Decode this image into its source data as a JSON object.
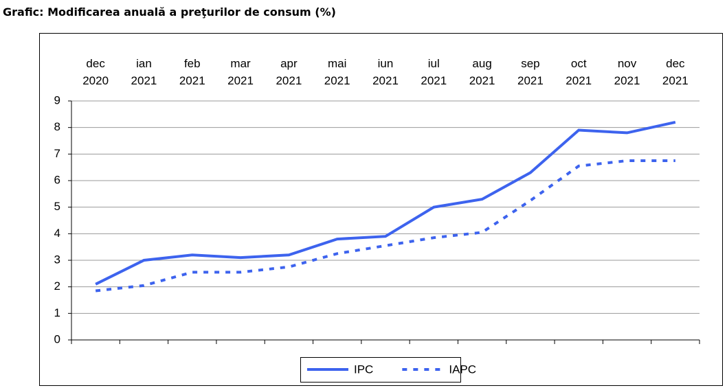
{
  "chart_data": {
    "type": "line",
    "title": "Grafic: Modificarea anuală a preţurilor de consum (%)",
    "categories": [
      "dec 2020",
      "ian 2021",
      "feb 2021",
      "mar 2021",
      "apr 2021",
      "mai 2021",
      "iun 2021",
      "iul 2021",
      "aug 2021",
      "sep 2021",
      "oct 2021",
      "nov 2021",
      "dec 2021"
    ],
    "series": [
      {
        "name": "IPC",
        "color": "#3d63ee",
        "line_style": "solid",
        "values": [
          2.1,
          3.0,
          3.2,
          3.1,
          3.2,
          3.8,
          3.9,
          5.0,
          5.3,
          6.3,
          7.9,
          7.8,
          8.2
        ]
      },
      {
        "name": "IAPC",
        "color": "#3d63ee",
        "line_style": "dotted",
        "values": [
          1.85,
          2.05,
          2.55,
          2.55,
          2.75,
          3.25,
          3.55,
          3.85,
          4.05,
          5.25,
          6.55,
          6.75,
          6.75
        ]
      }
    ],
    "ylim": [
      0,
      9
    ],
    "yticks": [
      0,
      1,
      2,
      3,
      4,
      5,
      6,
      7,
      8,
      9
    ],
    "grid": true,
    "legend": "bottom"
  }
}
